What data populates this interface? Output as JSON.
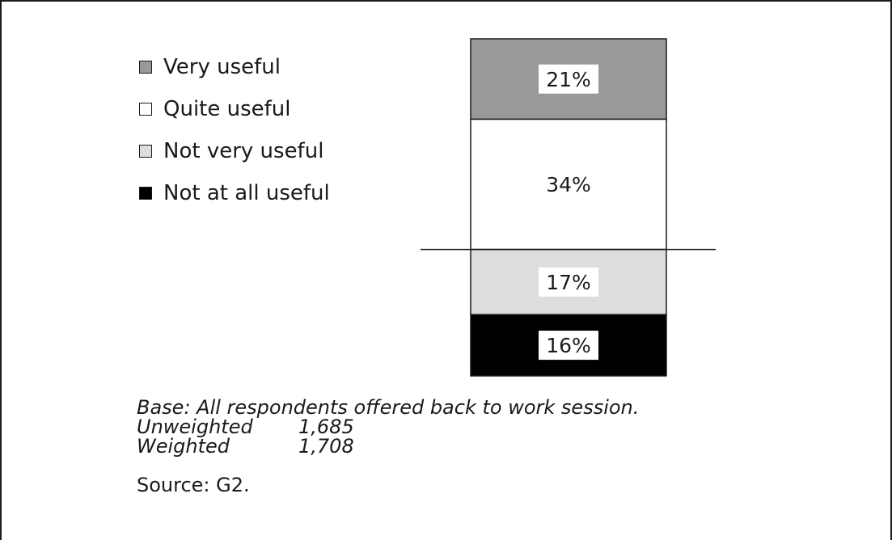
{
  "chart_data": {
    "type": "bar",
    "stacked": true,
    "title": "",
    "xlabel": "",
    "ylabel": "",
    "categories": [
      ""
    ],
    "ylim": [
      0,
      88
    ],
    "midline_after_series": 1,
    "series": [
      {
        "name": "Very useful",
        "value": 21,
        "label": "21%",
        "color": "#999999"
      },
      {
        "name": "Quite useful",
        "value": 34,
        "label": "34%",
        "color": "#ffffff"
      },
      {
        "name": "Not very useful",
        "value": 17,
        "label": "17%",
        "color": "#dddddd"
      },
      {
        "name": "Not at all useful",
        "value": 16,
        "label": "16%",
        "color": "#000000"
      }
    ],
    "legend_position": "top-left",
    "grid": false
  },
  "notes": {
    "base": "Base: All respondents offered back to work session.",
    "unweighted_label": "Unweighted",
    "unweighted_value": "1,685",
    "weighted_label": "Weighted",
    "weighted_value": "1,708"
  },
  "source": "Source: G2."
}
